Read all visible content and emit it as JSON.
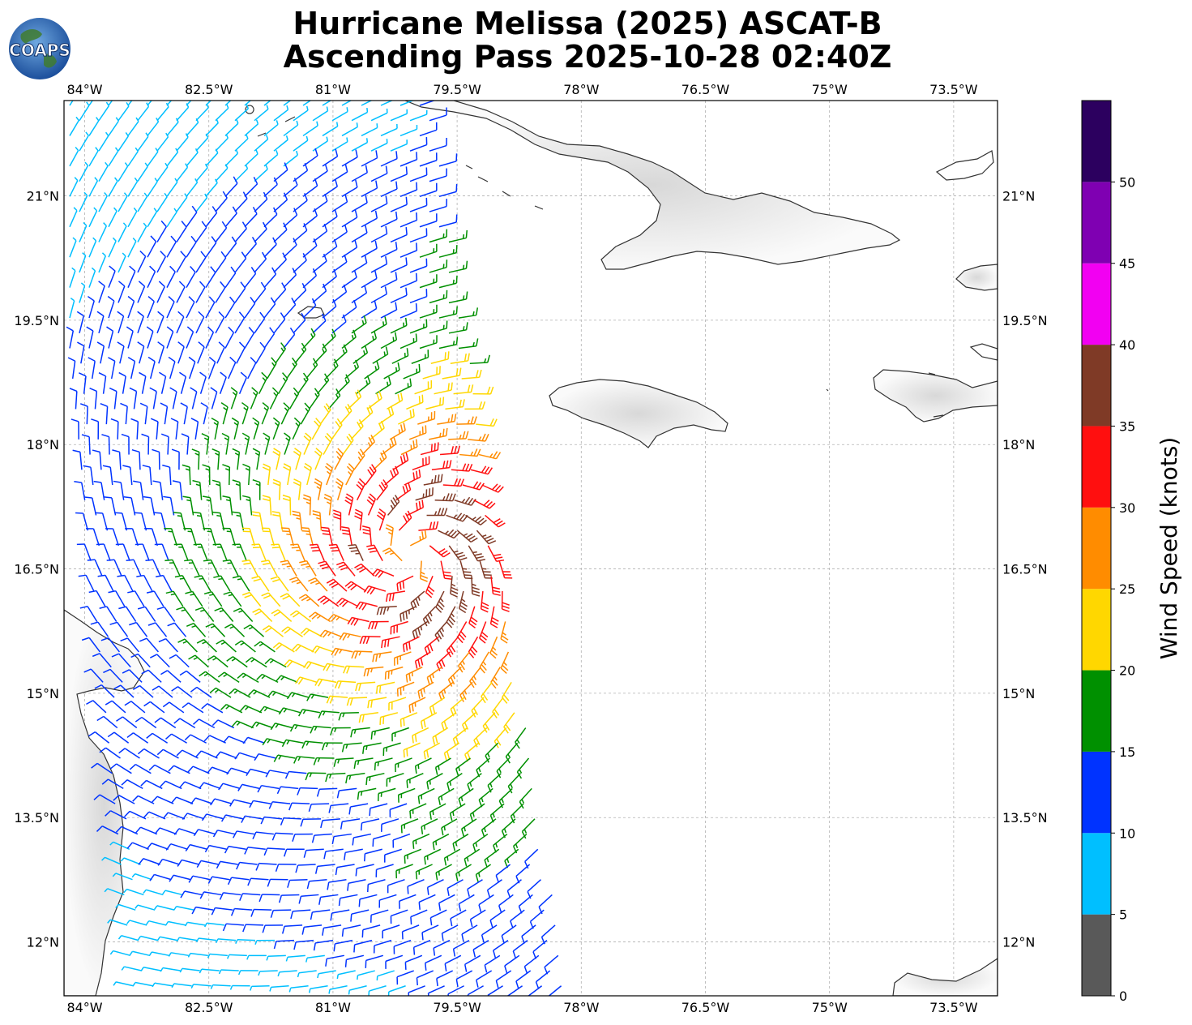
{
  "title": {
    "line1": "Hurricane Melissa (2025) ASCAT-B",
    "line2": "Ascending Pass 2025-10-28 02:40Z"
  },
  "logo": {
    "text": "COAPS"
  },
  "map": {
    "lon_range": [
      -84.25,
      -72.97
    ],
    "lat_range": [
      11.35,
      22.15
    ],
    "lon_ticks": [
      {
        "value": -84,
        "label": "84°W"
      },
      {
        "value": -82.5,
        "label": "82.5°W"
      },
      {
        "value": -81,
        "label": "81°W"
      },
      {
        "value": -79.5,
        "label": "79.5°W"
      },
      {
        "value": -78,
        "label": "78°W"
      },
      {
        "value": -76.5,
        "label": "76.5°W"
      },
      {
        "value": -75,
        "label": "75°W"
      },
      {
        "value": -73.5,
        "label": "73.5°W"
      }
    ],
    "lat_ticks": [
      {
        "value": 21,
        "label": "21°N"
      },
      {
        "value": 19.5,
        "label": "19.5°N"
      },
      {
        "value": 18,
        "label": "18°N"
      },
      {
        "value": 16.5,
        "label": "16.5°N"
      },
      {
        "value": 15,
        "label": "15°N"
      },
      {
        "value": 13.5,
        "label": "13.5°N"
      },
      {
        "value": 12,
        "label": "12°N"
      }
    ],
    "grid": true,
    "storm_center": {
      "lon": -80.05,
      "lat": 16.65
    },
    "landmasses": [
      "Cuba",
      "Jamaica",
      "Hispaniola",
      "Central America",
      "Isla de la Juventud",
      "Cayman Islands"
    ]
  },
  "colorbar": {
    "label": "Wind Speed (knots)",
    "ticks": [
      "0",
      "5",
      "10",
      "15",
      "20",
      "25",
      "30",
      "35",
      "40",
      "45",
      "50"
    ],
    "max": 55,
    "bins": [
      {
        "from": 0,
        "to": 5,
        "color": "#595959"
      },
      {
        "from": 5,
        "to": 10,
        "color": "#00bfff"
      },
      {
        "from": 10,
        "to": 15,
        "color": "#0033ff"
      },
      {
        "from": 15,
        "to": 20,
        "color": "#009000"
      },
      {
        "from": 20,
        "to": 25,
        "color": "#ffd700"
      },
      {
        "from": 25,
        "to": 30,
        "color": "#ff8c00"
      },
      {
        "from": 30,
        "to": 35,
        "color": "#ff0f0f"
      },
      {
        "from": 35,
        "to": 40,
        "color": "#7f3a26"
      },
      {
        "from": 40,
        "to": 45,
        "color": "#f200f2"
      },
      {
        "from": 45,
        "to": 50,
        "color": "#7f00b2"
      },
      {
        "from": 50,
        "to": 55,
        "color": "#2c005f"
      }
    ]
  }
}
